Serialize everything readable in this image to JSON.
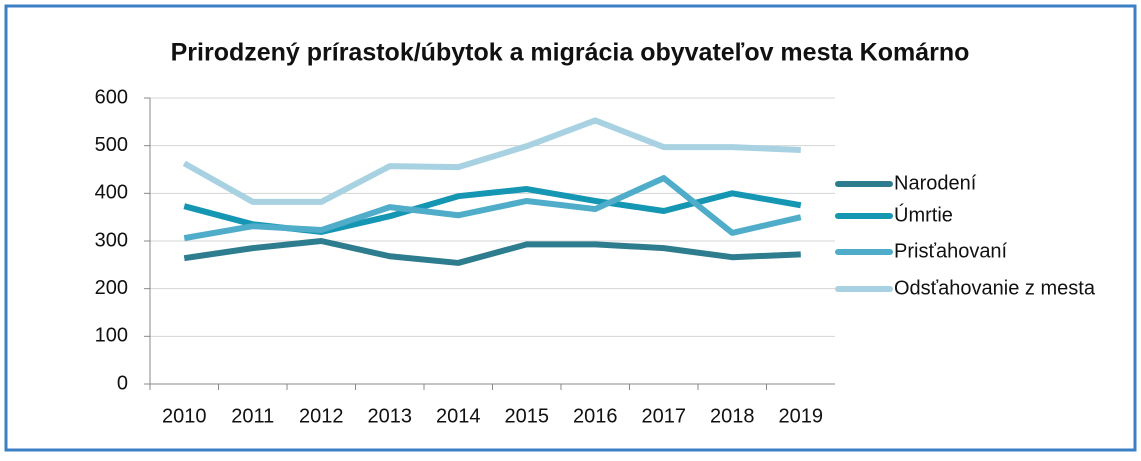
{
  "chart_data": {
    "type": "line",
    "title": "Prirodzený prírastok/úbytok a migrácia obyvateľov mesta Komárno",
    "categories": [
      "2010",
      "2011",
      "2012",
      "2013",
      "2014",
      "2015",
      "2016",
      "2017",
      "2018",
      "2019"
    ],
    "series": [
      {
        "name": "Narodení",
        "color": "#2e7d8e",
        "values": [
          264,
          285,
          300,
          268,
          254,
          293,
          293,
          285,
          266,
          272
        ]
      },
      {
        "name": "Úmrtie",
        "color": "#1596b3",
        "values": [
          373,
          335,
          319,
          352,
          394,
          409,
          384,
          363,
          400,
          375
        ]
      },
      {
        "name": "Prisťahovaní",
        "color": "#4fadca",
        "values": [
          306,
          331,
          323,
          371,
          354,
          384,
          367,
          432,
          317,
          350
        ]
      },
      {
        "name": "Odsťahovanie z mesta",
        "color": "#a8d2e2",
        "values": [
          463,
          382,
          382,
          457,
          455,
          499,
          553,
          497,
          497,
          491
        ]
      }
    ],
    "ylim": [
      0,
      600
    ],
    "yticks": [
      0,
      100,
      200,
      300,
      400,
      500,
      600
    ],
    "grid": true,
    "legend": "right"
  }
}
